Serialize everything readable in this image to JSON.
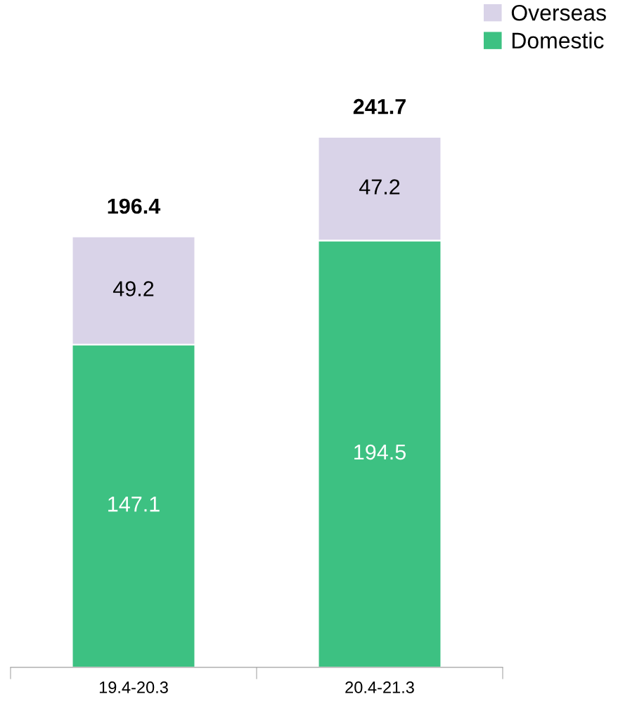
{
  "chart_data": {
    "type": "bar",
    "stacked": true,
    "categories": [
      "19.4-20.3",
      "20.4-21.3"
    ],
    "series": [
      {
        "name": "Domestic",
        "color": "#3dc182",
        "values": [
          147.1,
          194.5
        ]
      },
      {
        "name": "Overseas",
        "color": "#d9d3e8",
        "values": [
          49.2,
          47.2
        ]
      }
    ],
    "data_labels": true,
    "totals": [
      "196.4",
      "241.7"
    ],
    "legend": "top right",
    "grid": false,
    "tick_labels": "x"
  }
}
